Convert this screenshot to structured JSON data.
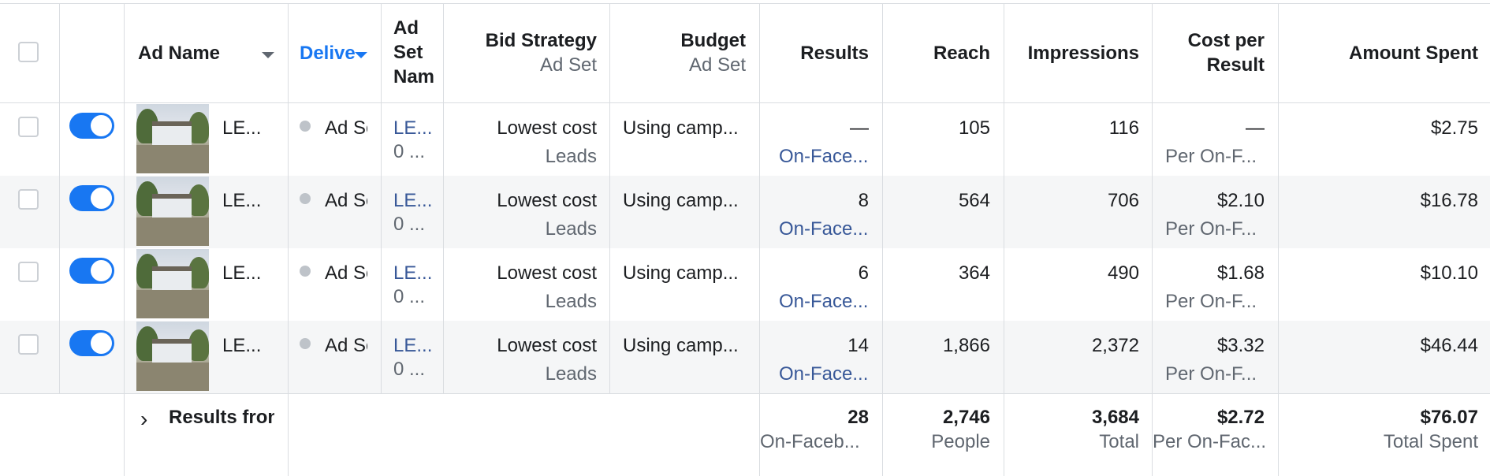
{
  "header": {
    "ad_name": "Ad Name",
    "delivery": "Delive",
    "ad_set_name_l1": "Ad",
    "ad_set_name_l2": "Set",
    "ad_set_name_l3": "Nam",
    "bid_strategy": "Bid Strategy",
    "bid_strategy_sub": "Ad Set",
    "budget": "Budget",
    "budget_sub": "Ad Set",
    "results": "Results",
    "reach": "Reach",
    "impressions": "Impressions",
    "cost_l1": "Cost per",
    "cost_l2": "Result",
    "amount_spent": "Amount Spent"
  },
  "rows": [
    {
      "ad_name": "LE...",
      "delivery": "Ad Se",
      "ad_set_l1": "LE...",
      "ad_set_l2": "0 ...",
      "bid": "Lowest cost",
      "bid_sub": "Leads",
      "budget": "Using camp...",
      "results": "—",
      "results_sub": "On-Face...",
      "reach": "105",
      "impressions": "116",
      "cost": "—",
      "cost_sub": "Per On-F...",
      "amount": "$2.75"
    },
    {
      "ad_name": "LE...",
      "delivery": "Ad Se",
      "ad_set_l1": "LE...",
      "ad_set_l2": "0 ...",
      "bid": "Lowest cost",
      "bid_sub": "Leads",
      "budget": "Using camp...",
      "results": "8",
      "results_sub": "On-Face...",
      "reach": "564",
      "impressions": "706",
      "cost": "$2.10",
      "cost_sub": "Per On-F...",
      "amount": "$16.78"
    },
    {
      "ad_name": "LE...",
      "delivery": "Ad Se",
      "ad_set_l1": "LE...",
      "ad_set_l2": "0 ...",
      "bid": "Lowest cost",
      "bid_sub": "Leads",
      "budget": "Using camp...",
      "results": "6",
      "results_sub": "On-Face...",
      "reach": "364",
      "impressions": "490",
      "cost": "$1.68",
      "cost_sub": "Per On-F...",
      "amount": "$10.10"
    },
    {
      "ad_name": "LE...",
      "delivery": "Ad Se",
      "ad_set_l1": "LE...",
      "ad_set_l2": "0 ...",
      "bid": "Lowest cost",
      "bid_sub": "Leads",
      "budget": "Using camp...",
      "results": "14",
      "results_sub": "On-Face...",
      "reach": "1,866",
      "impressions": "2,372",
      "cost": "$3.32",
      "cost_sub": "Per On-F...",
      "amount": "$46.44"
    }
  ],
  "totals": {
    "label": "Results fron",
    "results": "28",
    "results_sub": "On-Faceb...",
    "reach": "2,746",
    "reach_sub": "People",
    "impressions": "3,684",
    "impressions_sub": "Total",
    "cost": "$2.72",
    "cost_sub": "Per On-Fac...",
    "amount": "$76.07",
    "amount_sub": "Total Spent"
  },
  "colors": {
    "toggle_on": "#1877f2",
    "link": "#385898",
    "sort_active": "#1877f2"
  }
}
